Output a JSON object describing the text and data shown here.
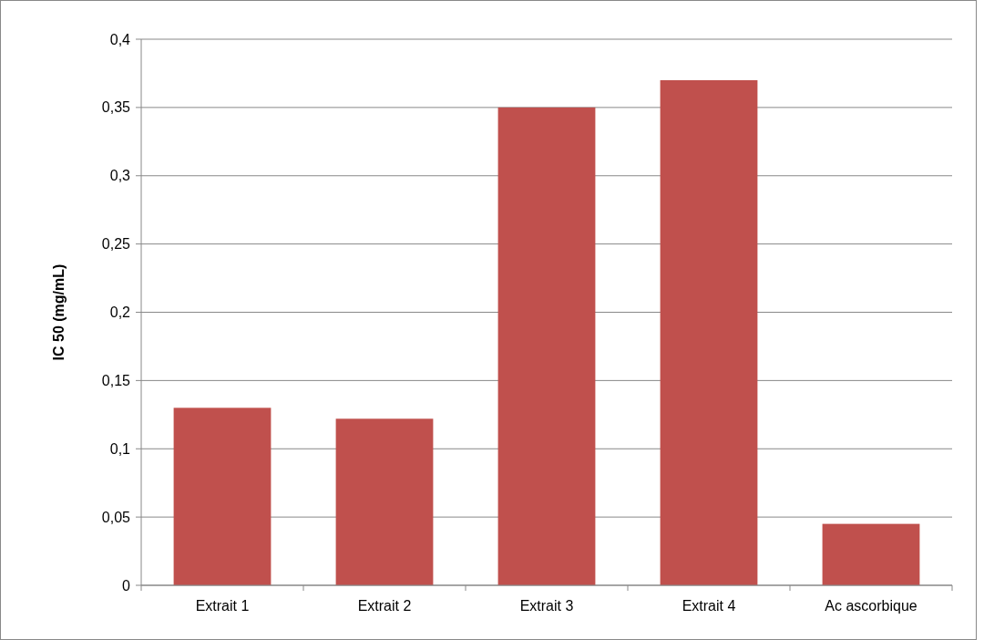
{
  "chart_data": {
    "type": "bar",
    "ylabel": "IC 50 (mg/mL)",
    "categories": [
      "Extrait 1",
      "Extrait 2",
      "Extrait 3",
      "Extrait 4",
      "Ac ascorbique"
    ],
    "values": [
      0.13,
      0.122,
      0.35,
      0.37,
      0.045
    ],
    "color": "#c0504d",
    "ylim": [
      0,
      0.4
    ],
    "yticks": [
      0,
      {
        "value": 0.05,
        "label": "0,05"
      },
      {
        "value": 0.1,
        "label": "0,1"
      },
      {
        "value": 0.15,
        "label": "0,15"
      },
      {
        "value": 0.2,
        "label": "0,2"
      },
      {
        "value": 0.25,
        "label": "0,25"
      },
      {
        "value": 0.3,
        "label": "0,3"
      },
      {
        "value": 0.35,
        "label": "0,35"
      },
      {
        "value": 0.4,
        "label": "0,4"
      }
    ],
    "grid": "y"
  }
}
